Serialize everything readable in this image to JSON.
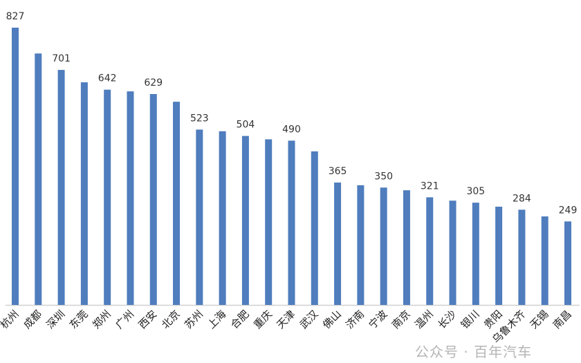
{
  "chart_data": {
    "type": "bar",
    "title": "",
    "xlabel": "",
    "ylabel": "",
    "ylim": [
      0,
      827
    ],
    "grid": false,
    "color": "#4F7DBD",
    "categories": [
      "杭州",
      "成都",
      "深圳",
      "东莞",
      "郑州",
      "广州",
      "西安",
      "北京",
      "苏州",
      "上海",
      "合肥",
      "重庆",
      "天津",
      "武汉",
      "佛山",
      "济南",
      "宁波",
      "南京",
      "温州",
      "长沙",
      "银川",
      "贵阳",
      "乌鲁木齐",
      "无锡",
      "南昌"
    ],
    "values": [
      827,
      750,
      701,
      664,
      642,
      637,
      629,
      606,
      523,
      518,
      504,
      494,
      490,
      458,
      365,
      357,
      350,
      342,
      321,
      311,
      305,
      293,
      284,
      264,
      249
    ],
    "data_labels": {
      "0": "827",
      "2": "701",
      "4": "642",
      "6": "629",
      "8": "523",
      "10": "504",
      "12": "490",
      "14": "365",
      "16": "350",
      "18": "321",
      "20": "305",
      "22": "284",
      "24": "249"
    }
  },
  "watermark": "公众号 · 百年汽车"
}
